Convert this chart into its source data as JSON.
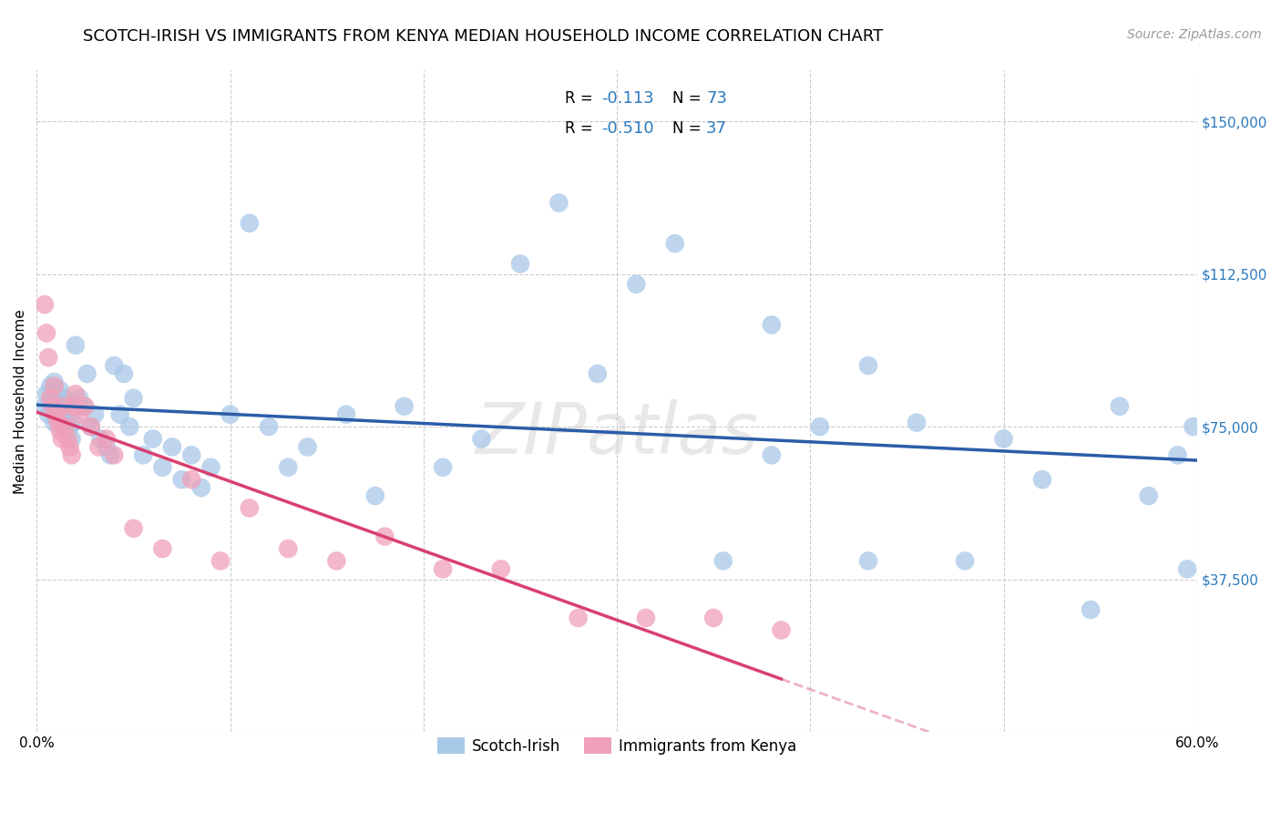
{
  "title": "SCOTCH-IRISH VS IMMIGRANTS FROM KENYA MEDIAN HOUSEHOLD INCOME CORRELATION CHART",
  "source": "Source: ZipAtlas.com",
  "ylabel": "Median Household Income",
  "yticks": [
    0,
    37500,
    75000,
    112500,
    150000
  ],
  "ytick_labels": [
    "",
    "$37,500",
    "$75,000",
    "$112,500",
    "$150,000"
  ],
  "xlim": [
    0.0,
    0.6
  ],
  "ylim": [
    0,
    162500
  ],
  "series1_name": "Scotch-Irish",
  "series1_R": "-0.113",
  "series1_N": "73",
  "series1_color": "#a8c8e8",
  "series1_line_color": "#2b5ca8",
  "series2_name": "Immigrants from Kenya",
  "series2_R": "-0.510",
  "series2_N": "37",
  "series2_color": "#f0a0b8",
  "series2_line_color": "#d84070",
  "bg_color": "#ffffff",
  "grid_color": "#cccccc",
  "watermark": "ZIPatlas",
  "scotch_irish_x": [
    0.004,
    0.005,
    0.006,
    0.007,
    0.008,
    0.008,
    0.009,
    0.009,
    0.01,
    0.01,
    0.011,
    0.012,
    0.012,
    0.013,
    0.014,
    0.015,
    0.016,
    0.017,
    0.018,
    0.019,
    0.02,
    0.022,
    0.024,
    0.026,
    0.028,
    0.03,
    0.033,
    0.036,
    0.038,
    0.04,
    0.043,
    0.045,
    0.048,
    0.05,
    0.055,
    0.06,
    0.065,
    0.07,
    0.075,
    0.08,
    0.085,
    0.09,
    0.1,
    0.11,
    0.12,
    0.13,
    0.14,
    0.16,
    0.175,
    0.19,
    0.21,
    0.23,
    0.25,
    0.27,
    0.29,
    0.31,
    0.33,
    0.355,
    0.38,
    0.405,
    0.43,
    0.455,
    0.48,
    0.5,
    0.52,
    0.545,
    0.56,
    0.575,
    0.59,
    0.595,
    0.598,
    0.38,
    0.43
  ],
  "scotch_irish_y": [
    80000,
    83000,
    78000,
    85000,
    82000,
    79000,
    86000,
    76000,
    83000,
    80000,
    77000,
    84000,
    79000,
    75000,
    82000,
    78000,
    80000,
    75000,
    72000,
    76000,
    95000,
    82000,
    80000,
    88000,
    75000,
    78000,
    72000,
    70000,
    68000,
    90000,
    78000,
    88000,
    75000,
    82000,
    68000,
    72000,
    65000,
    70000,
    62000,
    68000,
    60000,
    65000,
    78000,
    125000,
    75000,
    65000,
    70000,
    78000,
    58000,
    80000,
    65000,
    72000,
    115000,
    130000,
    88000,
    110000,
    120000,
    42000,
    68000,
    75000,
    42000,
    76000,
    42000,
    72000,
    62000,
    30000,
    80000,
    58000,
    68000,
    40000,
    75000,
    100000,
    90000
  ],
  "kenya_x": [
    0.004,
    0.005,
    0.006,
    0.007,
    0.008,
    0.009,
    0.01,
    0.011,
    0.012,
    0.013,
    0.014,
    0.015,
    0.016,
    0.017,
    0.018,
    0.019,
    0.02,
    0.022,
    0.025,
    0.028,
    0.032,
    0.036,
    0.04,
    0.05,
    0.065,
    0.08,
    0.095,
    0.11,
    0.13,
    0.155,
    0.18,
    0.21,
    0.24,
    0.28,
    0.315,
    0.35,
    0.385
  ],
  "kenya_y": [
    105000,
    98000,
    92000,
    82000,
    80000,
    85000,
    78000,
    76000,
    74000,
    72000,
    80000,
    75000,
    72000,
    70000,
    68000,
    80000,
    83000,
    78000,
    80000,
    75000,
    70000,
    72000,
    68000,
    50000,
    45000,
    62000,
    42000,
    55000,
    45000,
    42000,
    48000,
    40000,
    40000,
    28000,
    28000,
    28000,
    25000
  ],
  "title_fontsize": 13,
  "axis_fontsize": 11,
  "tick_fontsize": 11,
  "source_fontsize": 10
}
